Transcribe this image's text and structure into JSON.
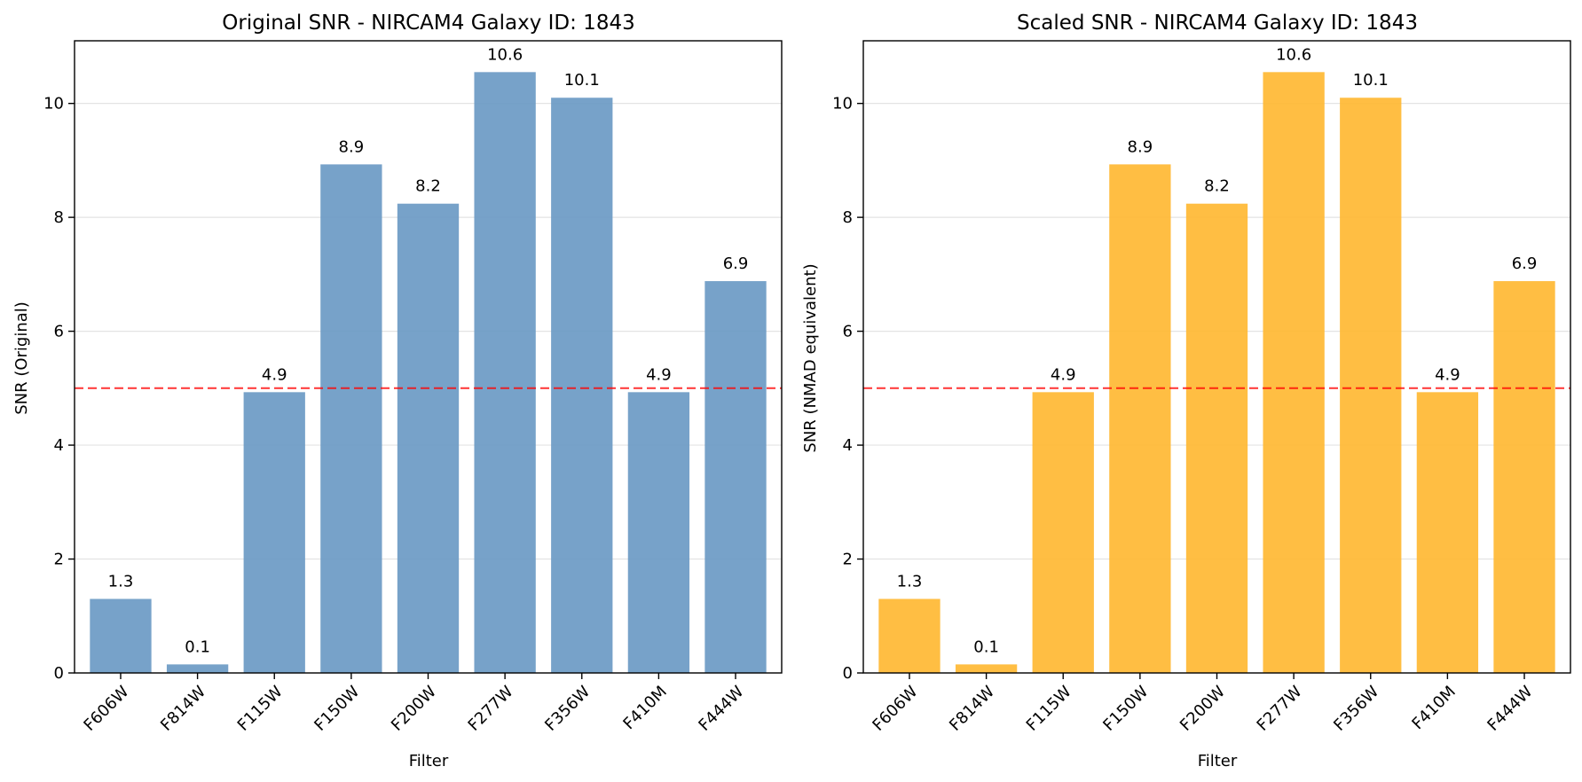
{
  "chart_data": [
    {
      "type": "bar",
      "title": "Original SNR - NIRCAM4 Galaxy ID: 1843",
      "xlabel": "Filter",
      "ylabel": "SNR (Original)",
      "categories": [
        "F606W",
        "F814W",
        "F115W",
        "F150W",
        "F200W",
        "F277W",
        "F356W",
        "F410M",
        "F444W"
      ],
      "values": [
        1.3,
        0.15,
        4.93,
        8.93,
        8.24,
        10.55,
        10.1,
        4.93,
        6.88
      ],
      "value_labels": [
        "1.3",
        "0.1",
        "4.9",
        "8.9",
        "8.2",
        "10.6",
        "10.1",
        "4.9",
        "6.9"
      ],
      "yticks": [
        0,
        2,
        4,
        6,
        8,
        10
      ],
      "ylim": [
        0,
        11.1
      ],
      "grid": "y",
      "bar_color": "#6b9ac4",
      "reference_line": {
        "y": 5,
        "color": "#ff0000",
        "style": "dashed"
      }
    },
    {
      "type": "bar",
      "title": "Scaled SNR - NIRCAM4 Galaxy ID: 1843",
      "xlabel": "Filter",
      "ylabel": "SNR (NMAD equivalent)",
      "categories": [
        "F606W",
        "F814W",
        "F115W",
        "F150W",
        "F200W",
        "F277W",
        "F356W",
        "F410M",
        "F444W"
      ],
      "values": [
        1.3,
        0.15,
        4.93,
        8.93,
        8.24,
        10.55,
        10.1,
        4.93,
        6.88
      ],
      "value_labels": [
        "1.3",
        "0.1",
        "4.9",
        "8.9",
        "8.2",
        "10.6",
        "10.1",
        "4.9",
        "6.9"
      ],
      "yticks": [
        0,
        2,
        4,
        6,
        8,
        10
      ],
      "ylim": [
        0,
        11.1
      ],
      "grid": "y",
      "bar_color": "#ffb833",
      "reference_line": {
        "y": 5,
        "color": "#ff0000",
        "style": "dashed"
      }
    }
  ]
}
